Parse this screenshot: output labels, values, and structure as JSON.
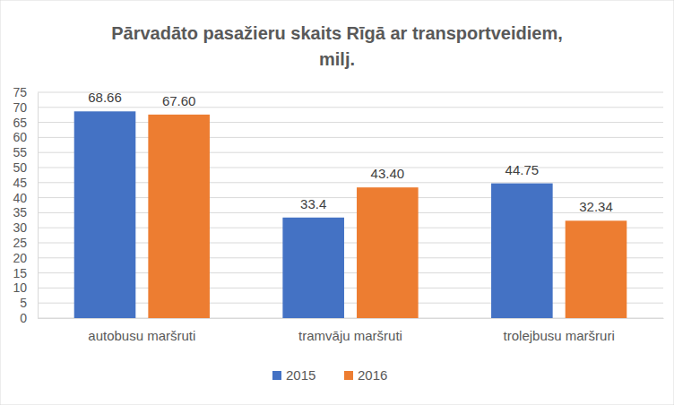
{
  "chart_data": {
    "type": "bar",
    "title": "Pārvadāto pasažieru skaits Rīgā ar transportveidiem, milj.",
    "categories": [
      "autobusu maršruti",
      "tramvāju maršruti",
      "trolejbusu maršruri"
    ],
    "series": [
      {
        "name": "2015",
        "color": "#4472c4",
        "values": [
          68.66,
          33.4,
          44.75
        ],
        "value_labels": [
          "68.66",
          "33.4",
          "44.75"
        ]
      },
      {
        "name": "2016",
        "color": "#ed7d31",
        "values": [
          67.6,
          43.4,
          32.34
        ],
        "value_labels": [
          "67.60",
          "43.40",
          "32.34"
        ]
      }
    ],
    "ylim": [
      0,
      75
    ],
    "yticks": [
      0,
      5,
      10,
      15,
      20,
      25,
      30,
      35,
      40,
      45,
      50,
      55,
      60,
      65,
      70,
      75
    ],
    "grid": true,
    "legend": "bottom",
    "data_labels": true
  }
}
